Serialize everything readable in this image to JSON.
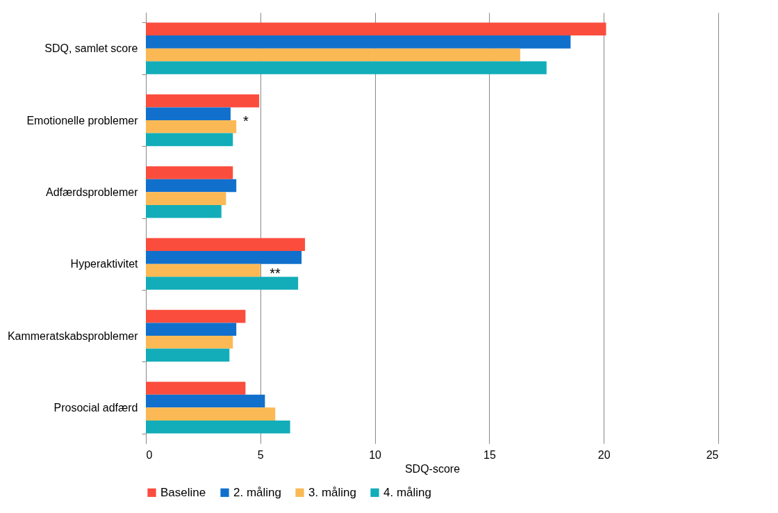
{
  "chart_data": {
    "type": "bar",
    "orientation": "horizontal",
    "xlabel": "SDQ-score",
    "categories": [
      "SDQ, samlet score",
      "Emotionelle problemer",
      "Adfærdsproblemer",
      "Hyperaktivitet",
      "Kammeratskabsproblemer",
      "Prosocial adfærd"
    ],
    "series": [
      {
        "name": "Baseline",
        "color": "#fb4d3d",
        "values": [
          20.1,
          4.95,
          3.8,
          6.95,
          4.35,
          4.35
        ]
      },
      {
        "name": "2. måling",
        "color": "#1170cc",
        "values": [
          18.55,
          3.7,
          3.95,
          6.8,
          3.95,
          5.2
        ]
      },
      {
        "name": "3. måling",
        "color": "#fbb955",
        "values": [
          16.35,
          3.95,
          3.5,
          5.0,
          3.8,
          5.65
        ]
      },
      {
        "name": "4. måling",
        "color": "#12adb9",
        "values": [
          17.5,
          3.8,
          3.3,
          6.65,
          3.65,
          6.3
        ]
      }
    ],
    "xlim": [
      0,
      25
    ],
    "xticks": [
      0,
      5,
      10,
      15,
      20,
      25
    ],
    "grid": "x",
    "legend": "bottom",
    "annotations": [
      "*",
      "**"
    ]
  }
}
